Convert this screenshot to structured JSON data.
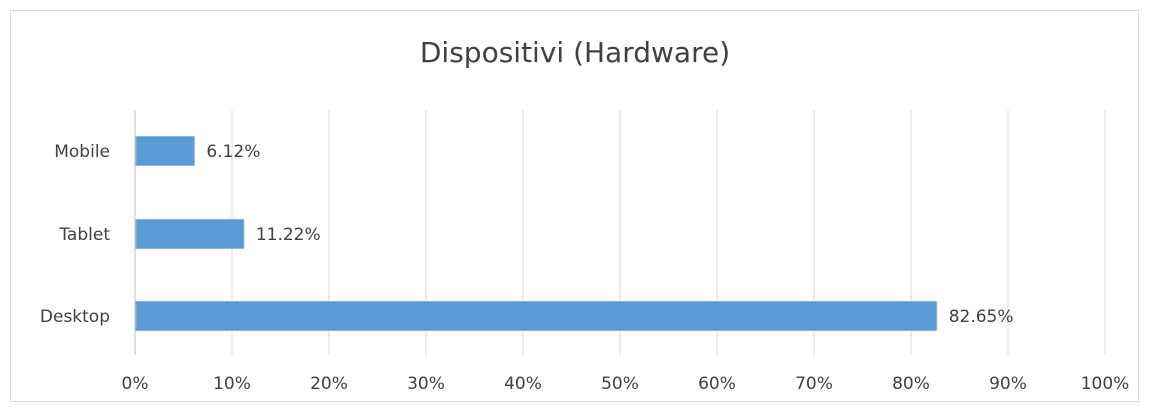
{
  "chart_data": {
    "type": "bar",
    "orientation": "horizontal",
    "title": "Dispositivi (Hardware)",
    "categories": [
      "Mobile",
      "Tablet",
      "Desktop"
    ],
    "values": [
      6.12,
      11.22,
      82.65
    ],
    "data_labels": [
      "6.12%",
      "11.22%",
      "82.65%"
    ],
    "xlim": [
      0,
      100
    ],
    "x_ticks": [
      "0%",
      "10%",
      "20%",
      "30%",
      "40%",
      "50%",
      "60%",
      "70%",
      "80%",
      "90%",
      "100%"
    ],
    "xlabel": "",
    "ylabel": "",
    "grid": "vertical",
    "legend": "none",
    "bar_color": "#5b9bd5"
  }
}
